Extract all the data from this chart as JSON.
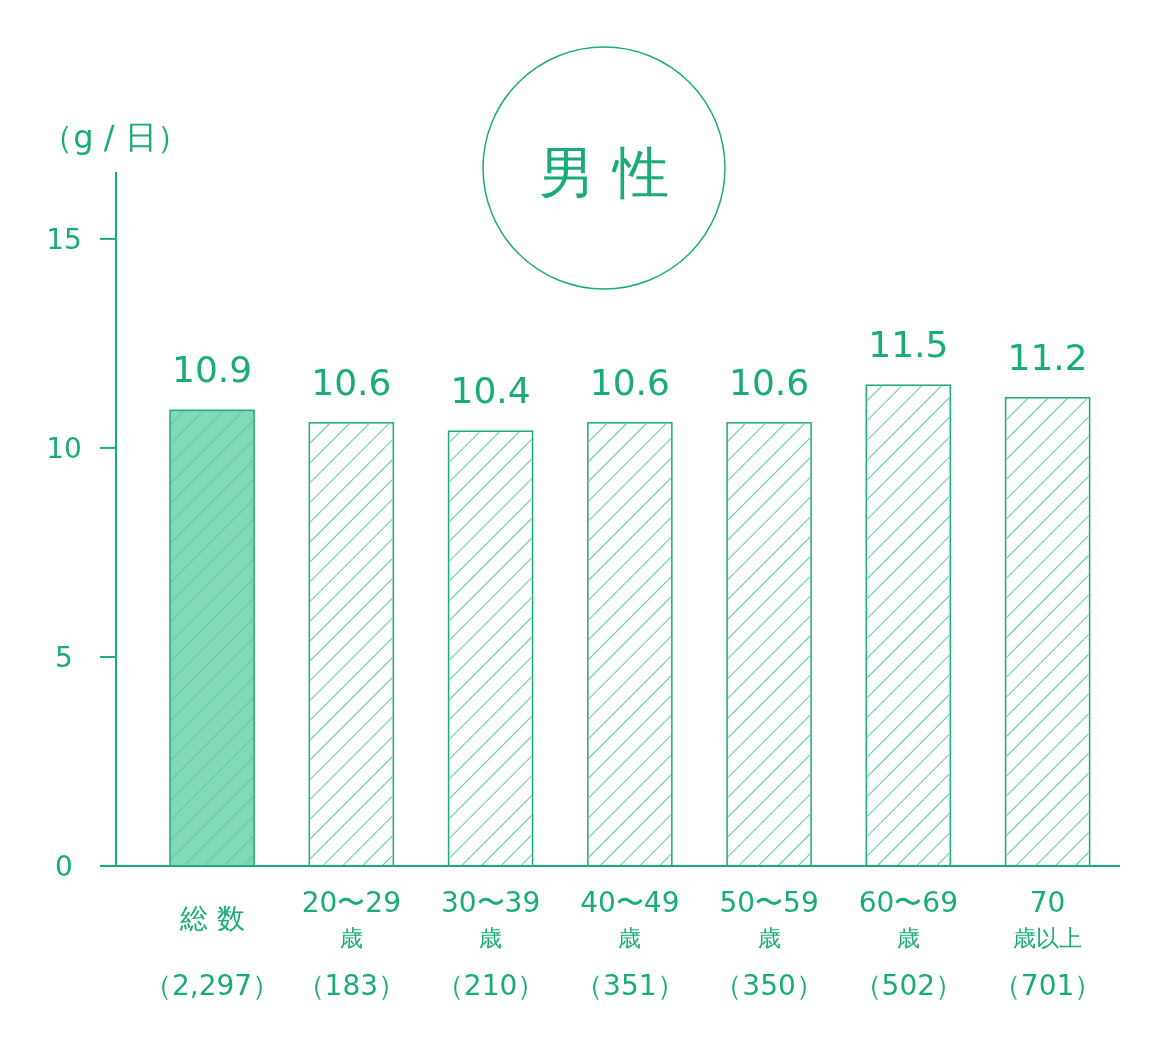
{
  "chart_data": {
    "type": "bar",
    "title": "男 性",
    "ylabel": "（g / 日）",
    "categories": [
      "総 数（2,297）",
      "20〜29歳（183）",
      "30〜39歳（210）",
      "40〜49歳（351）",
      "50〜59歳（350）",
      "60〜69歳（502）",
      "70歳以上（701）"
    ],
    "values": [
      10.9,
      10.6,
      10.4,
      10.6,
      10.6,
      11.5,
      11.2
    ],
    "colors": [
      "#82d9b6",
      "#ffffff",
      "#ffffff",
      "#ffffff",
      "#ffffff",
      "#ffffff",
      "#ffffff"
    ],
    "ylim": [
      0,
      16.6
    ],
    "yticks": [
      0,
      5,
      10,
      15
    ],
    "data_labels": true
  }
}
